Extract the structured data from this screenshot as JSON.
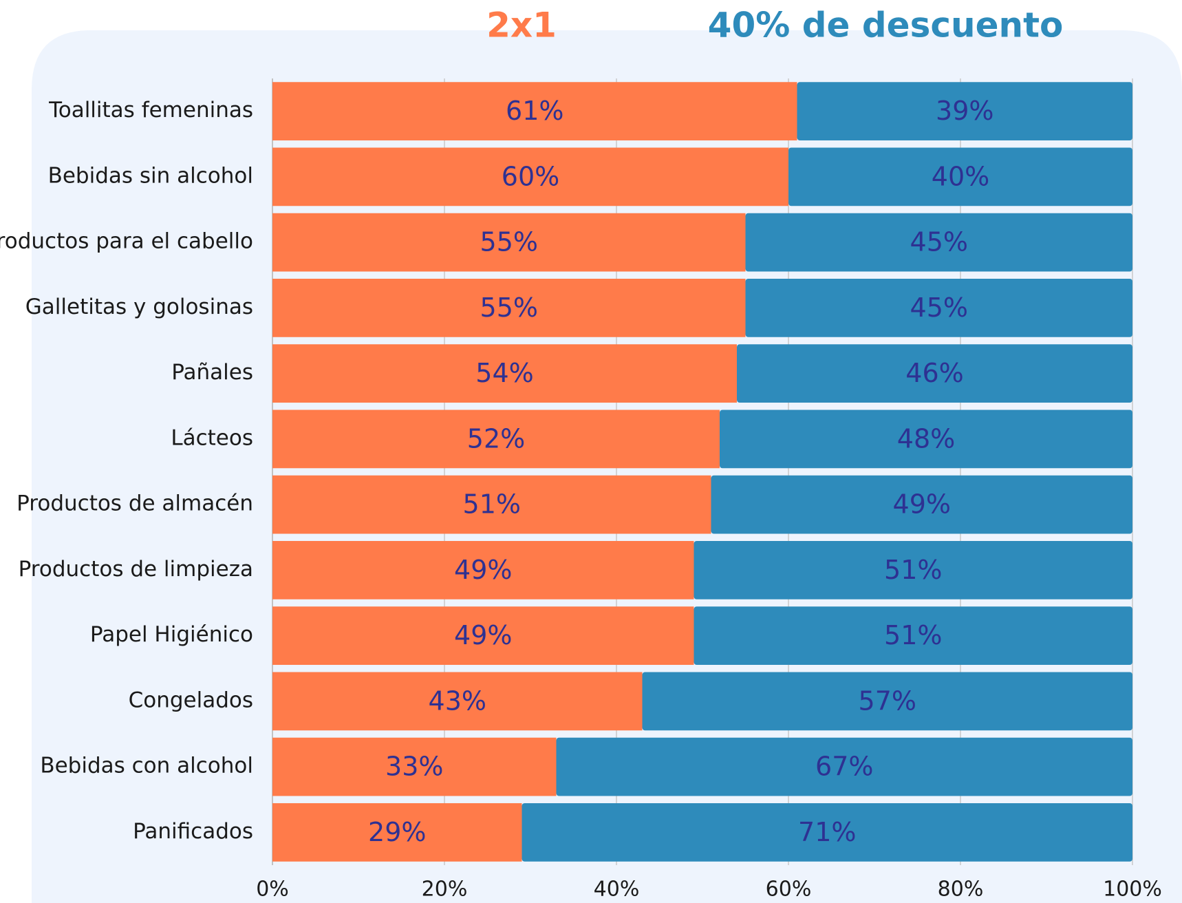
{
  "chart_data": {
    "type": "stacked-barh",
    "categories": [
      "Toallitas femeninas",
      "Bebidas sin alcohol",
      "Productos para el cabello",
      "Galletitas y golosinas",
      "Pañales",
      "Lácteos",
      "Productos de almacén",
      "Productos de limpieza",
      "Papel Higiénico",
      "Congelados",
      "Bebidas con alcohol",
      "Panificados"
    ],
    "series": [
      {
        "name": "2x1",
        "color": "#ff7b4a",
        "values": [
          61,
          60,
          55,
          55,
          54,
          52,
          51,
          49,
          49,
          43,
          33,
          29
        ],
        "value_labels": [
          "61%",
          "60%",
          "55%",
          "55%",
          "54%",
          "52%",
          "51%",
          "49%",
          "49%",
          "43%",
          "33%",
          "29%"
        ]
      },
      {
        "name": "40% de descuento",
        "color": "#2e8bbb",
        "values": [
          39,
          40,
          45,
          45,
          46,
          48,
          49,
          51,
          51,
          57,
          67,
          71
        ],
        "value_labels": [
          "39%",
          "40%",
          "45%",
          "45%",
          "46%",
          "48%",
          "49%",
          "51%",
          "51%",
          "57%",
          "67%",
          "71%"
        ]
      }
    ],
    "xlim": [
      0,
      100
    ],
    "xticks": [
      {
        "value": 0,
        "label": "0%"
      },
      {
        "value": 20,
        "label": "20%"
      },
      {
        "value": 40,
        "label": "40%"
      },
      {
        "value": 60,
        "label": "60%"
      },
      {
        "value": 80,
        "label": "80%"
      },
      {
        "value": 100,
        "label": "100%"
      }
    ],
    "grid": true
  }
}
